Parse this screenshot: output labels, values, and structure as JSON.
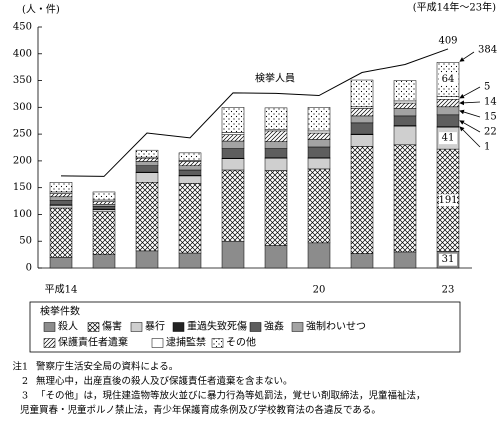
{
  "chart_data": {
    "type": "stacked-bar-line",
    "y_unit": "(人・件)",
    "subtitle": "(平成14年～23年)",
    "categories": [
      "平成14",
      null,
      null,
      null,
      null,
      null,
      "20",
      null,
      null,
      "23"
    ],
    "ylim": [
      0,
      450
    ],
    "yticks": [
      0,
      50,
      100,
      150,
      200,
      250,
      300,
      350,
      400,
      450
    ],
    "legend_title": "検挙件数",
    "series": [
      {
        "name": "殺人",
        "color": "#8c8c8c",
        "pattern": "solid",
        "values": [
          20,
          25,
          32,
          28,
          50,
          42,
          47,
          27,
          30,
          31
        ]
      },
      {
        "name": "傷害",
        "color": "#000000",
        "pattern": "crosshatch",
        "values": [
          92,
          80,
          128,
          130,
          133,
          140,
          138,
          200,
          200,
          191
        ]
      },
      {
        "name": "暴行",
        "color": "#cfcfcf",
        "pattern": "solid",
        "values": [
          5,
          4,
          18,
          14,
          21,
          23,
          20,
          22,
          35,
          41
        ]
      },
      {
        "name": "重過失致死傷",
        "color": "#222222",
        "pattern": "solid",
        "values": [
          1,
          1,
          1,
          1,
          1,
          1,
          1,
          1,
          1,
          1
        ]
      },
      {
        "name": "強姦",
        "color": "#5e5e5e",
        "pattern": "solid",
        "values": [
          8,
          5,
          12,
          10,
          18,
          17,
          20,
          21,
          18,
          22
        ]
      },
      {
        "name": "強制わいせつ",
        "color": "#a3a3a3",
        "pattern": "solid",
        "values": [
          7,
          4,
          8,
          8,
          14,
          13,
          14,
          13,
          14,
          15
        ]
      },
      {
        "name": "保護責任者遺棄",
        "color": "#000000",
        "pattern": "diagonal",
        "values": [
          6,
          5,
          6,
          8,
          12,
          20,
          12,
          14,
          10,
          14
        ]
      },
      {
        "name": "逮捕監禁",
        "color": "#ffffff",
        "pattern": "solid",
        "values": [
          3,
          3,
          2,
          2,
          4,
          3,
          4,
          3,
          4,
          5
        ]
      },
      {
        "name": "その他",
        "color": "#000000",
        "pattern": "dots",
        "values": [
          18,
          15,
          13,
          14,
          47,
          40,
          44,
          50,
          38,
          64
        ]
      }
    ],
    "line_series": {
      "name": "検挙人員",
      "color": "#000000",
      "values": [
        172,
        171,
        252,
        243,
        327,
        326,
        322,
        365,
        380,
        409
      ]
    },
    "last_total": 384,
    "annotate_last_category": true
  },
  "notes": [
    {
      "mark": "注1",
      "text": "警察庁生活安全局の資料による。"
    },
    {
      "mark": "2",
      "text": "無理心中，出産直後の殺人及び保護責任者遺棄を含まない。"
    },
    {
      "mark": "3",
      "text": "「その他」は，現住建造物等放火並びに暴力行為等処罰法，覚せい剤取締法，児童福祉法，"
    },
    {
      "mark": null,
      "text": "児童買春・児童ポルノ禁止法，青少年保護育成条例及び学校教育法の各違反である。"
    }
  ]
}
